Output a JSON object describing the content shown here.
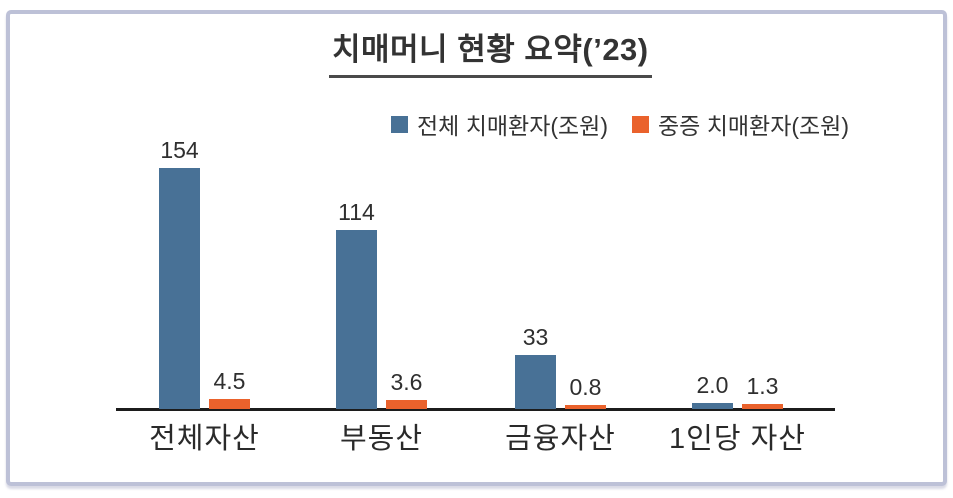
{
  "chart_data": {
    "type": "bar",
    "title": "치매머니 현황 요약(’23)",
    "categories": [
      "전체자산",
      "부동산",
      "금융자산",
      "1인당 자산"
    ],
    "series": [
      {
        "name": "전체 치매환자(조원)",
        "color": "#487196",
        "values": [
          154,
          114,
          33,
          2.0
        ],
        "value_labels": [
          "154",
          "114",
          "33",
          "2.0"
        ]
      },
      {
        "name": "중증 치매환자(조원)",
        "color": "#EA622C",
        "values": [
          4.5,
          3.6,
          0.8,
          1.3
        ],
        "value_labels": [
          "4.5",
          "3.6",
          "0.8",
          "1.3"
        ]
      }
    ],
    "ylim": [
      0,
      160
    ],
    "grid": false,
    "legend_position": "top-right",
    "y_axis_visible": false
  },
  "colors": {
    "series_total": "#487196",
    "series_severe": "#EA622C",
    "axis": "#1c1c1c",
    "text": "#2f2f2f",
    "title_underline": "#4a4a4a",
    "card_border": "#bdc1d7",
    "background": "#ffffff"
  }
}
